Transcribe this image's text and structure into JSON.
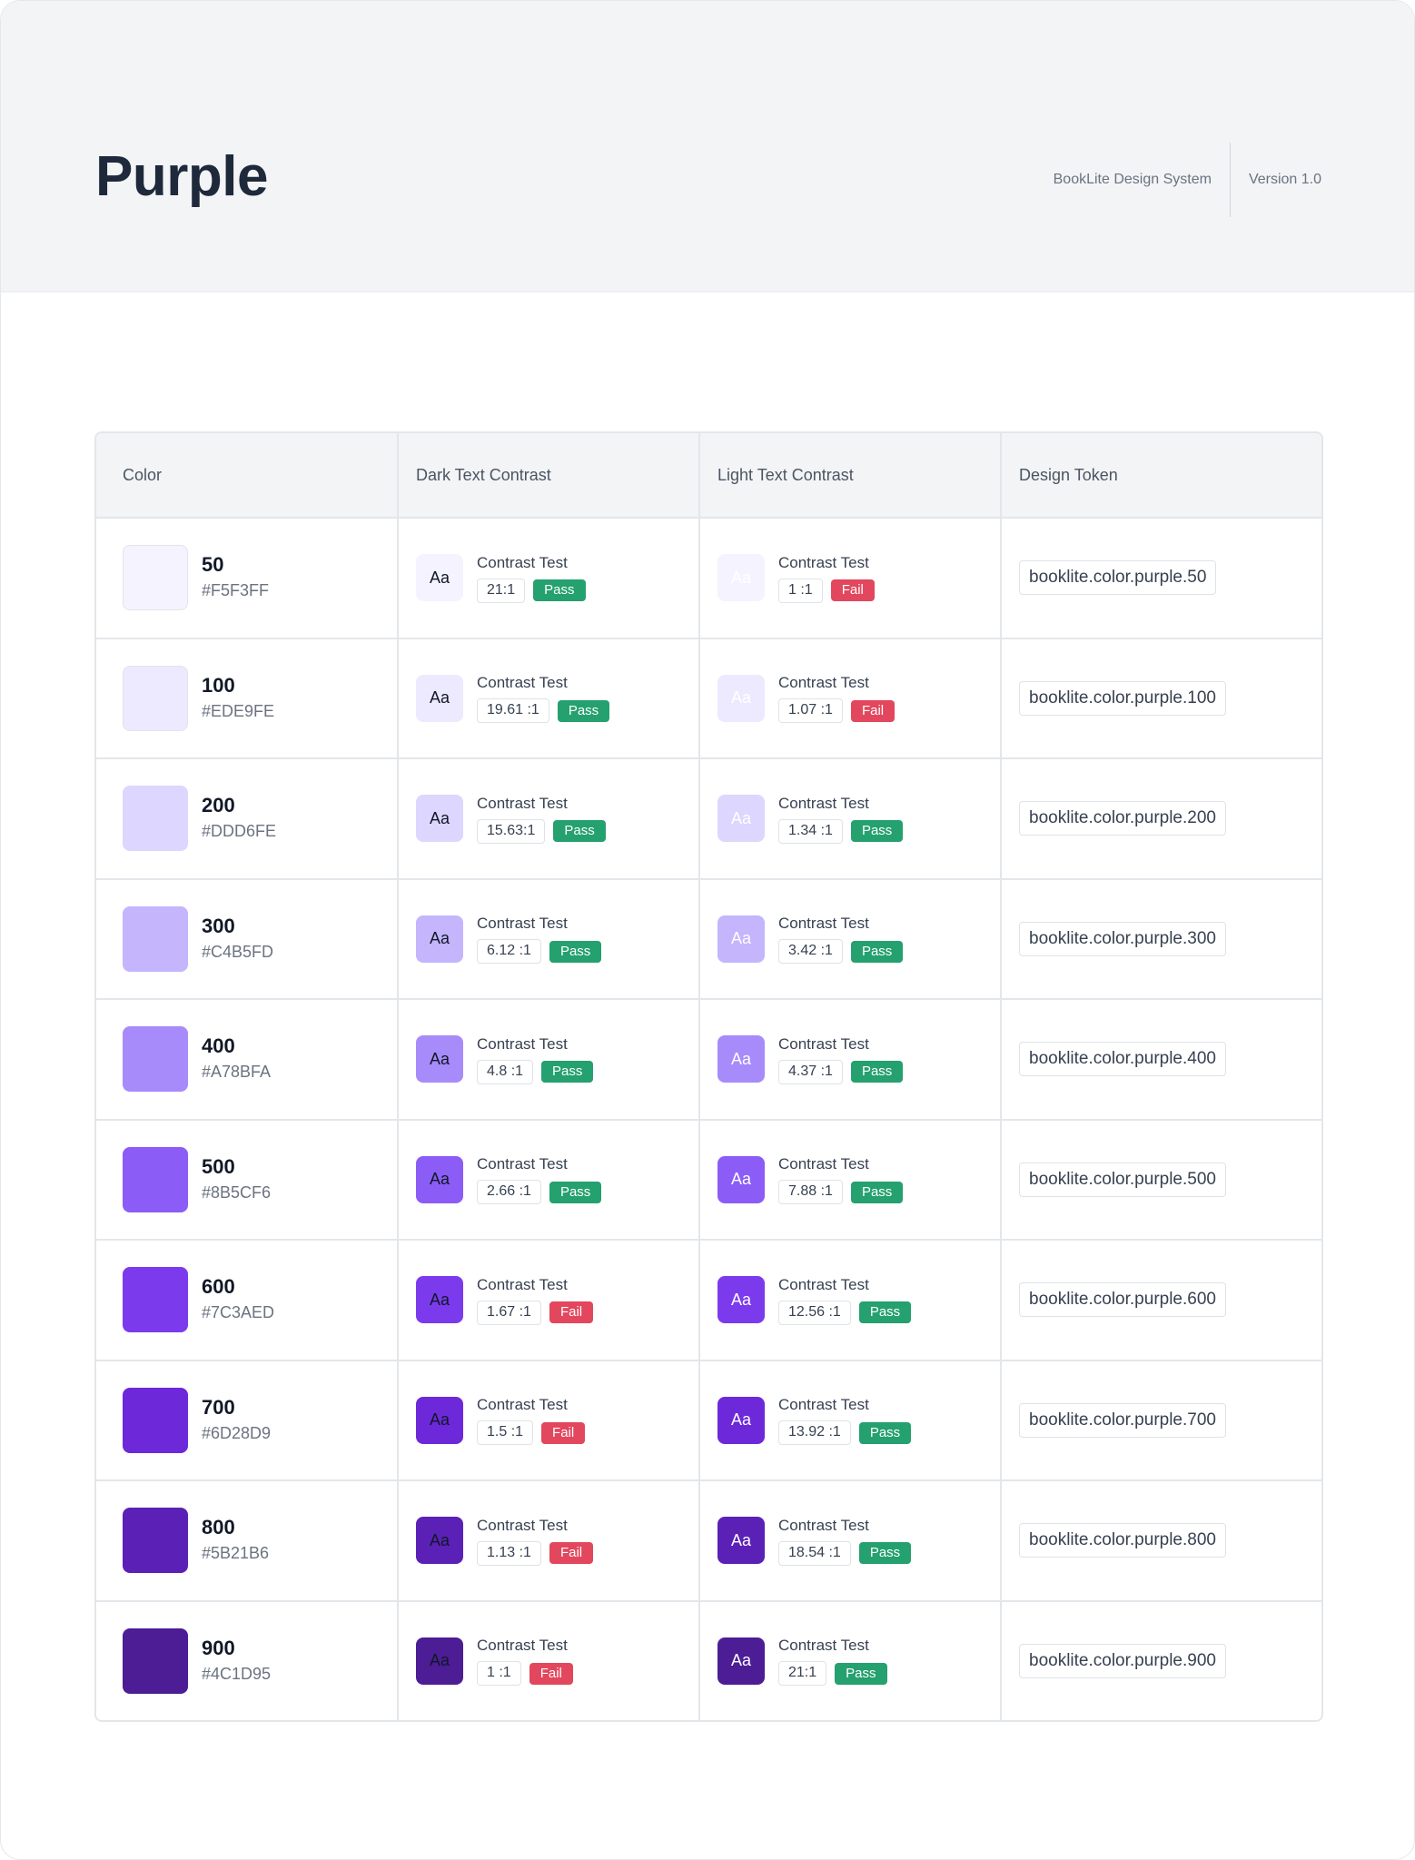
{
  "header": {
    "title": "Purple",
    "system": "BookLite Design System",
    "version": "Version 1.0"
  },
  "table": {
    "headers": [
      "Color",
      "Dark Text Contrast",
      "Light Text Contrast",
      "Design Token"
    ],
    "test_label": "Contrast Test",
    "aa_label": "Aa",
    "rows": [
      {
        "shade": "50",
        "hex": "#F5F3FF",
        "color": "#F5F3FF",
        "dark_ratio": "21:1",
        "dark_result": "Pass",
        "light_ratio": "1 :1",
        "light_result": "Fail",
        "token": "booklite.color.purple.50"
      },
      {
        "shade": "100",
        "hex": "#EDE9FE",
        "color": "#EDE9FE",
        "dark_ratio": "19.61 :1",
        "dark_result": "Pass",
        "light_ratio": "1.07 :1",
        "light_result": "Fail",
        "token": "booklite.color.purple.100"
      },
      {
        "shade": "200",
        "hex": "#DDD6FE",
        "color": "#DDD6FE",
        "dark_ratio": "15.63:1",
        "dark_result": "Pass",
        "light_ratio": "1.34 :1",
        "light_result": "Pass",
        "token": "booklite.color.purple.200"
      },
      {
        "shade": "300",
        "hex": "#C4B5FD",
        "color": "#C4B5FD",
        "dark_ratio": "6.12 :1",
        "dark_result": "Pass",
        "light_ratio": "3.42 :1",
        "light_result": "Pass",
        "token": "booklite.color.purple.300"
      },
      {
        "shade": "400",
        "hex": "#A78BFA",
        "color": "#A78BFA",
        "dark_ratio": "4.8 :1",
        "dark_result": "Pass",
        "light_ratio": "4.37 :1",
        "light_result": "Pass",
        "token": "booklite.color.purple.400"
      },
      {
        "shade": "500",
        "hex": "#8B5CF6",
        "color": "#8B5CF6",
        "dark_ratio": "2.66 :1",
        "dark_result": "Pass",
        "light_ratio": "7.88 :1",
        "light_result": "Pass",
        "token": "booklite.color.purple.500"
      },
      {
        "shade": "600",
        "hex": "#7C3AED",
        "color": "#7C3AED",
        "dark_ratio": "1.67 :1",
        "dark_result": "Fail",
        "light_ratio": "12.56 :1",
        "light_result": "Pass",
        "token": "booklite.color.purple.600"
      },
      {
        "shade": "700",
        "hex": "#6D28D9",
        "color": "#6D28D9",
        "dark_ratio": "1.5 :1",
        "dark_result": "Fail",
        "light_ratio": "13.92 :1",
        "light_result": "Pass",
        "token": "booklite.color.purple.700"
      },
      {
        "shade": "800",
        "hex": "#5B21B6",
        "color": "#5B21B6",
        "dark_ratio": "1.13 :1",
        "dark_result": "Fail",
        "light_ratio": "18.54 :1",
        "light_result": "Pass",
        "token": "booklite.color.purple.800"
      },
      {
        "shade": "900",
        "hex": "#4C1D95",
        "color": "#4C1D95",
        "dark_ratio": "1 :1",
        "dark_result": "Fail",
        "light_ratio": "21:1",
        "light_result": "Pass",
        "token": "booklite.color.purple.900"
      }
    ]
  }
}
